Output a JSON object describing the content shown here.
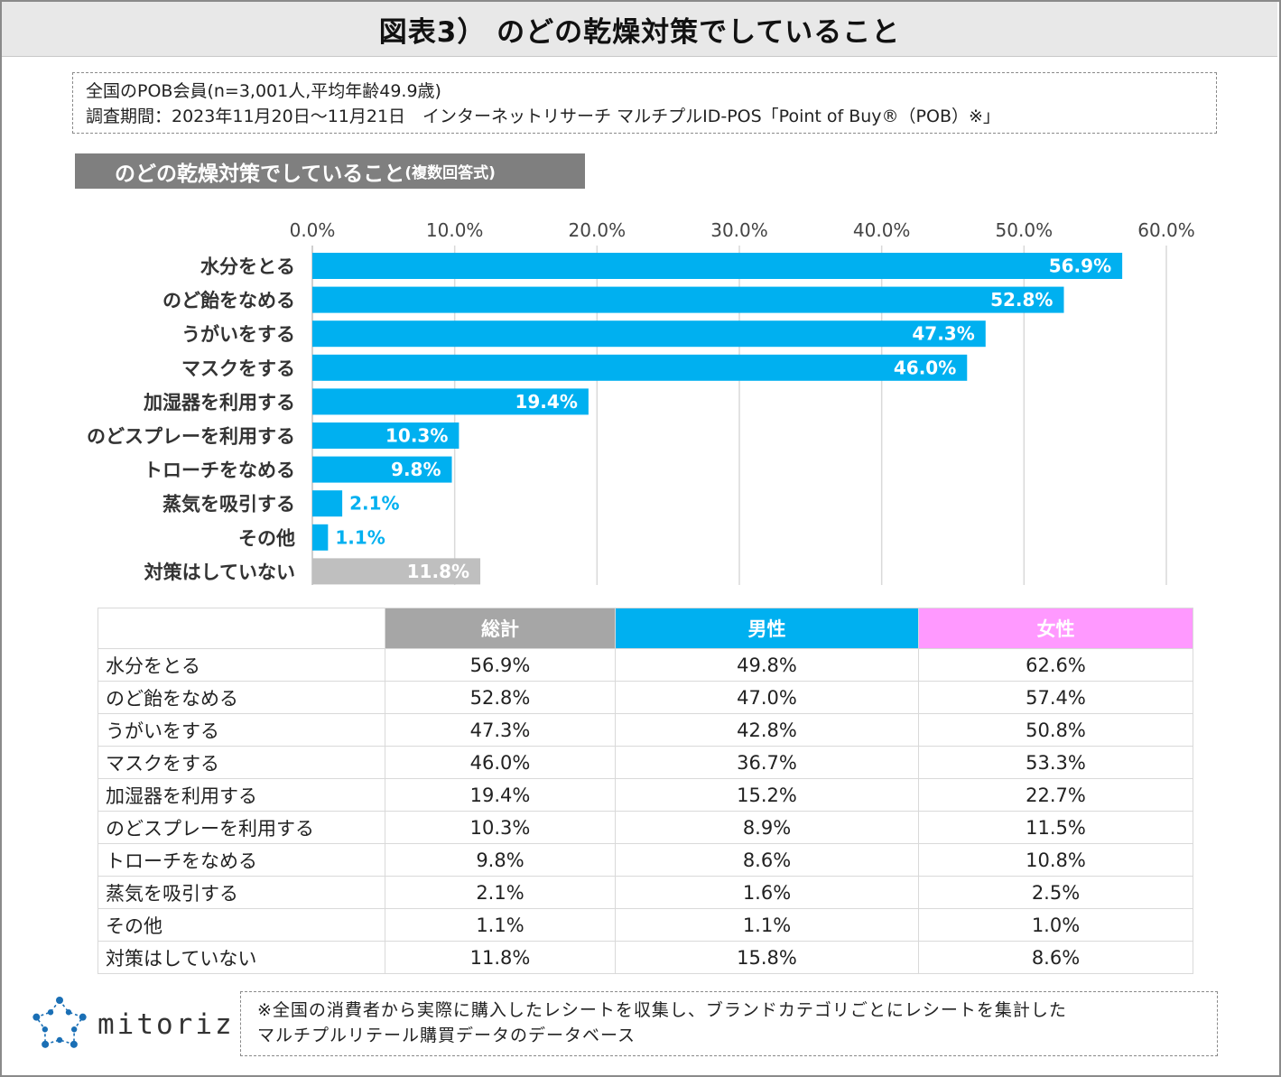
{
  "title": "図表3） のどの乾燥対策でしていること",
  "info": {
    "line1": "全国のPOB会員(n=3,001人,平均年齢49.9歳)",
    "line2": "調査期間：2023年11月20日～11月21日　インターネットリサーチ マルチプルID-POS「Point of Buy®（POB）※」"
  },
  "section_label": {
    "main": "のどの乾燥対策でしていること",
    "sub": "(複数回答式)"
  },
  "chart_data": {
    "type": "bar",
    "orientation": "horizontal",
    "title": "",
    "xlabel": "",
    "ylabel": "",
    "xlim": [
      0,
      60
    ],
    "x_ticks": [
      "0.0%",
      "10.0%",
      "20.0%",
      "30.0%",
      "40.0%",
      "50.0%",
      "60.0%"
    ],
    "grid": true,
    "categories": [
      "水分をとる",
      "のど飴をなめる",
      "うがいをする",
      "マスクをする",
      "加湿器を利用する",
      "のどスプレーを利用する",
      "トローチをなめる",
      "蒸気を吸引する",
      "その他",
      "対策はしていない"
    ],
    "values": [
      56.9,
      52.8,
      47.3,
      46.0,
      19.4,
      10.3,
      9.8,
      2.1,
      1.1,
      11.8
    ],
    "value_labels": [
      "56.9%",
      "52.8%",
      "47.3%",
      "46.0%",
      "19.4%",
      "10.3%",
      "9.8%",
      "2.1%",
      "1.1%",
      "11.8%"
    ],
    "colors": {
      "bar": "#00b0f0",
      "no_action_bar": "#bfbfbf",
      "grid": "#d9d9d9"
    }
  },
  "table": {
    "headers": [
      "総計",
      "男性",
      "女性"
    ],
    "header_colors": [
      "#a6a6a6",
      "#00b0f0",
      "#ff99ff"
    ],
    "rows": [
      {
        "label": "水分をとる",
        "total": "56.9%",
        "male": "49.8%",
        "female": "62.6%"
      },
      {
        "label": "のど飴をなめる",
        "total": "52.8%",
        "male": "47.0%",
        "female": "57.4%"
      },
      {
        "label": "うがいをする",
        "total": "47.3%",
        "male": "42.8%",
        "female": "50.8%"
      },
      {
        "label": "マスクをする",
        "total": "46.0%",
        "male": "36.7%",
        "female": "53.3%"
      },
      {
        "label": "加湿器を利用する",
        "total": "19.4%",
        "male": "15.2%",
        "female": "22.7%"
      },
      {
        "label": "のどスプレーを利用する",
        "total": "10.3%",
        "male": "8.9%",
        "female": "11.5%"
      },
      {
        "label": "トローチをなめる",
        "total": "9.8%",
        "male": "8.6%",
        "female": "10.8%"
      },
      {
        "label": "蒸気を吸引する",
        "total": "2.1%",
        "male": "1.6%",
        "female": "2.5%"
      },
      {
        "label": "その他",
        "total": "1.1%",
        "male": "1.1%",
        "female": "1.0%"
      },
      {
        "label": "対策はしていない",
        "total": "11.8%",
        "male": "15.8%",
        "female": "8.6%"
      }
    ]
  },
  "logo": {
    "text": "mitoriz",
    "icon": "mitoriz-star-icon",
    "color": "#1a6fb5"
  },
  "footnote": {
    "line1": "※全国の消費者から実際に購入したレシートを収集し、ブランドカテゴリごとにレシートを集計した",
    "line2": "マルチプルリテール購買データのデータベース"
  }
}
